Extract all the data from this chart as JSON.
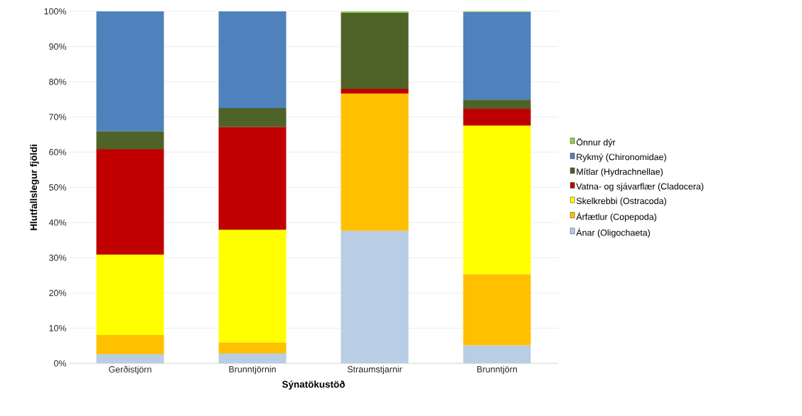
{
  "chart_data": {
    "type": "bar",
    "stacked": true,
    "xlabel": "Sýnatökustöð",
    "ylabel": "Hlutfallslegur fjöldi",
    "categories": [
      "Gerðistjörn",
      "Brunntjörnin",
      "Straumstjarnir",
      "Brunntjörn"
    ],
    "series": [
      {
        "name": "Ánar (Oligochaeta)",
        "color": "#b9cde5",
        "values": [
          2.6,
          2.8,
          37.6,
          5.1
        ]
      },
      {
        "name": "Árfætlur (Copepoda)",
        "color": "#ffc000",
        "values": [
          5.5,
          3.1,
          39.0,
          20.2
        ]
      },
      {
        "name": "Skelkrebbi (Ostracoda)",
        "color": "#ffff00",
        "values": [
          22.8,
          32.1,
          0,
          42.2
        ]
      },
      {
        "name": "Vatna- og sjávarflær (Cladocera)",
        "color": "#c00000",
        "values": [
          29.9,
          29.1,
          1.4,
          4.8
        ]
      },
      {
        "name": "Mítlar (Hydrachnellae)",
        "color": "#4f6228",
        "values": [
          5.1,
          5.4,
          21.6,
          2.6
        ]
      },
      {
        "name": "Rykmý (Chironomidae)",
        "color": "#4f81bd",
        "values": [
          34.1,
          27.5,
          0,
          24.9
        ]
      },
      {
        "name": "Önnur dýr",
        "color": "#92d050",
        "values": [
          0,
          0,
          0.4,
          0.2
        ]
      }
    ],
    "ylim": [
      0,
      100
    ],
    "yticks": [
      {
        "value": 0,
        "label": "0%"
      },
      {
        "value": 10,
        "label": "10%"
      },
      {
        "value": 20,
        "label": "20%"
      },
      {
        "value": 30,
        "label": "30%"
      },
      {
        "value": 40,
        "label": "40%"
      },
      {
        "value": 50,
        "label": "50%"
      },
      {
        "value": 60,
        "label": "60%"
      },
      {
        "value": 70,
        "label": "70%"
      },
      {
        "value": 80,
        "label": "80%"
      },
      {
        "value": 90,
        "label": "90%"
      },
      {
        "value": 100,
        "label": "100%"
      }
    ],
    "grid": "y",
    "legend": "right"
  }
}
